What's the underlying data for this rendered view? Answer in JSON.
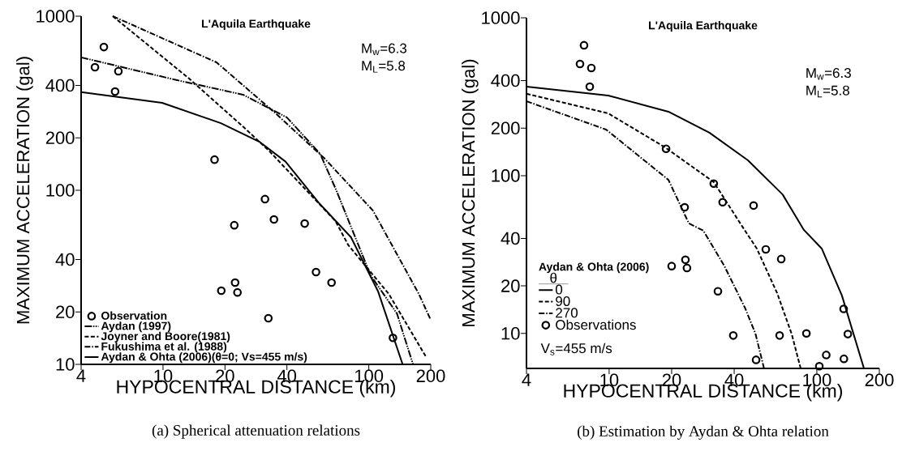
{
  "chart_data": [
    {
      "type": "line",
      "title": "L'Aquila Earthquake",
      "xlabel": "HYPOCENTRAL DISTANCE (km)",
      "ylabel": "MAXIMUM ACCELERATION (gal)",
      "log": "xy",
      "legend": "bottom left",
      "xlim": [
        4,
        200
      ],
      "ylim": [
        10,
        1000
      ],
      "xticks": [
        4,
        10,
        20,
        40,
        100,
        200
      ],
      "yticks": [
        10,
        20,
        40,
        100,
        200,
        400,
        1000
      ],
      "annotations": [
        "M$_{w}$=6.3",
        "M$_{L}$=5.8",
        "(a) Spherical attenuation relations"
      ],
      "series": [
        {
          "name": "Observation",
          "type": "scatter",
          "marker": "circle",
          "color": "#000000",
          "x": [
            5.16,
            4.67,
            6.07,
            5.85,
            17.8,
            31.3,
            34.6,
            48.8,
            22.2,
            55.4,
            65.9,
            19.2,
            22.4,
            23.0,
            32.5,
            131
          ],
          "values": [
            665,
            509,
            483,
            369,
            150,
            89,
            68,
            64.4,
            63,
            33.9,
            29.5,
            26.5,
            29.5,
            25.9,
            18.4,
            14.2
          ]
        },
        {
          "name": "Aydan (1997)",
          "line_style": "dashdotdot",
          "color": "#000000",
          "x": [
            4,
            11.6,
            24.5,
            40,
            58,
            69.5,
            102,
            137,
            164
          ],
          "values": [
            580,
            430,
            354,
            262,
            162,
            100,
            32.5,
            19.6,
            10
          ]
        },
        {
          "name": "Joyner and Boore(1981)",
          "line_style": "dashed",
          "color": "#000000",
          "x": [
            5.7,
            13.4,
            24.6,
            33,
            68.9,
            79.6,
            125,
            190
          ],
          "values": [
            1000,
            438,
            231,
            167,
            66.5,
            48.3,
            25.4,
            11
          ]
        },
        {
          "name": "Fukushima et al. (1988)",
          "line_style": "dashdot",
          "color": "#000000",
          "x": [
            5.7,
            18.2,
            35.2,
            60.7,
            104.6,
            175,
            200
          ],
          "values": [
            1000,
            543,
            277,
            153,
            76.6,
            25.4,
            18
          ]
        },
        {
          "name": "Aydan & Ohta (2006)(θ=0; Vs=455 m/s)",
          "line_style": "solid",
          "color": "#000000",
          "x": [
            4,
            9.9,
            19.1,
            29.4,
            39.4,
            57,
            81.9,
            111,
            146
          ],
          "values": [
            366,
            318,
            243,
            190,
            146,
            85,
            53.7,
            26.2,
            10
          ]
        }
      ]
    },
    {
      "type": "line",
      "title": "L'Aquila Earthquake",
      "xlabel": "HYPOCENTRAL DISTANCE (km)",
      "ylabel": "MAXIMUM ACCELERATION (gal)",
      "log": "xy",
      "legend": "bottom left",
      "legend_title": "Aydan & Ohta (2006)",
      "xlim": [
        4,
        200
      ],
      "ylim": [
        6,
        1000
      ],
      "xticks": [
        4,
        10,
        20,
        40,
        100,
        200
      ],
      "yticks": [
        10,
        20,
        40,
        100,
        200,
        400,
        1000
      ],
      "annotations": [
        "θ",
        "M$_{w}$=6.3",
        "M$_{L}$=5.8",
        "V$_{s}$=455 m/s",
        "(b) Estimation by Aydan & Ohta relation"
      ],
      "series": [
        {
          "name": "0",
          "line_style": "solid",
          "color": "#000000",
          "x": [
            4,
            9.9,
            19.3,
            30.4,
            46.6,
            68.4,
            86.6,
            105.6,
            132,
            168.6
          ],
          "values": [
            366,
            322,
            254,
            187,
            125,
            76,
            45.3,
            34.5,
            17.4,
            6
          ]
        },
        {
          "name": "90",
          "line_style": "dashed",
          "color": "#000000",
          "x": [
            4,
            9.9,
            18.6,
            31.9,
            43.8,
            51.4,
            64.4,
            75.7,
            83.6
          ],
          "values": [
            330,
            248,
            151,
            91,
            47.5,
            34.5,
            18,
            9.9,
            6
          ]
        },
        {
          "name": "270",
          "line_style": "dashdot",
          "color": "#000000",
          "x": [
            4,
            9.66,
            19.3,
            24.2,
            28.4,
            35.9,
            45,
            50.6,
            55.7
          ],
          "values": [
            296,
            196,
            94,
            49.8,
            44.8,
            26.7,
            14.6,
            10,
            6
          ]
        },
        {
          "name": "Observations",
          "type": "scatter",
          "marker": "circle",
          "color": "#000000",
          "x": [
            7.57,
            7.24,
            8.21,
            8.07,
            18.8,
            31.9,
            35.2,
            49.6,
            23.1,
            20,
            23.3,
            23.7,
            33.4,
            39.6,
            51,
            56.8,
            67.4,
            66.2,
            89.1,
            102.8,
            111,
            134.6,
            135,
            141
          ],
          "values": [
            670,
            510,
            481,
            366,
            148,
            89,
            67.8,
            64.6,
            63,
            26.7,
            29.3,
            26,
            18.5,
            9.7,
            6.8,
            34.1,
            29.6,
            9.7,
            10,
            6.2,
            7.3,
            14.3,
            6.9,
            9.9
          ]
        }
      ]
    }
  ]
}
